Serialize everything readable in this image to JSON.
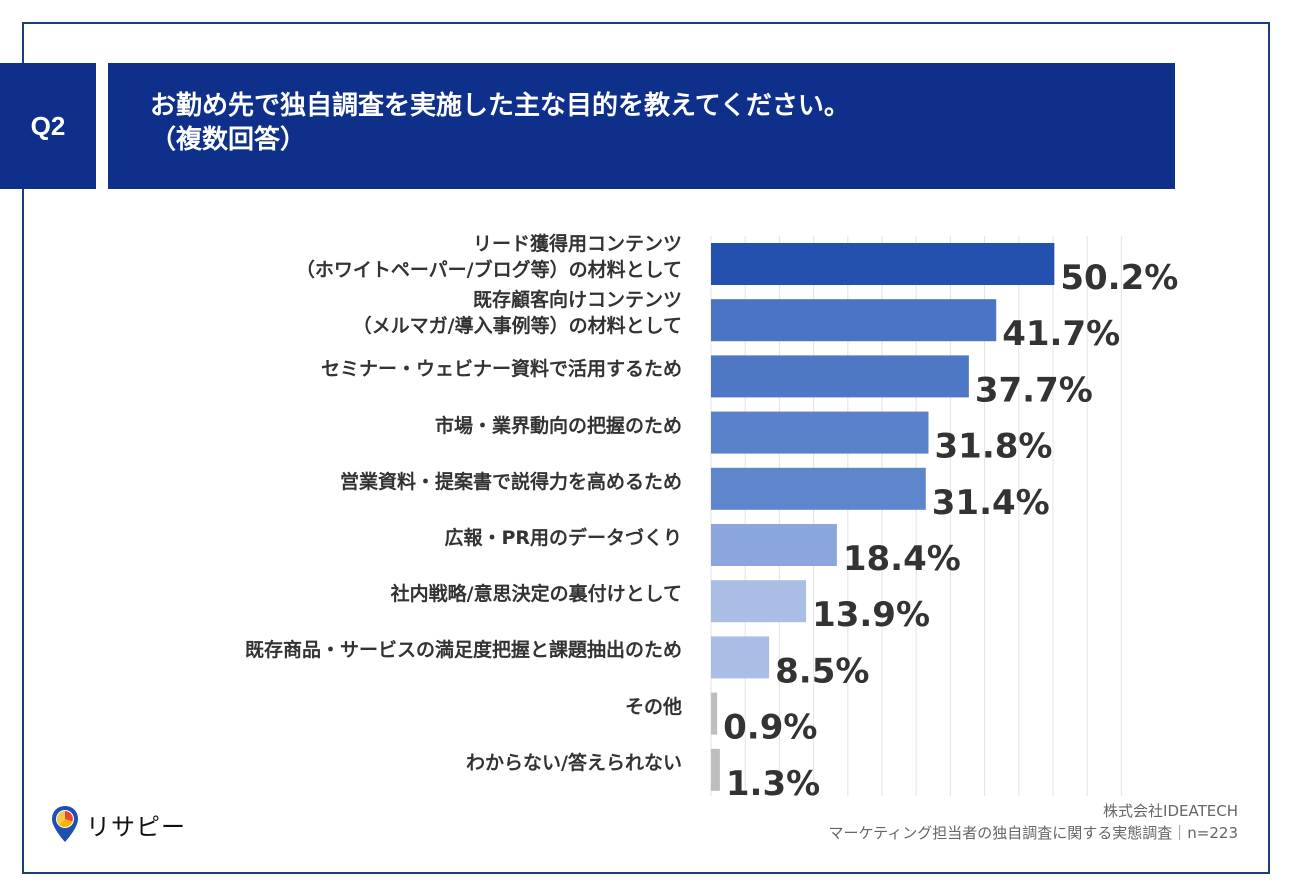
{
  "question": {
    "badge": "Q2",
    "title_line1": "お勤め先で独自調査を実施した主な目的を教えてください。",
    "title_line2": "（複数回答）"
  },
  "chart_data": {
    "type": "bar",
    "orientation": "horizontal",
    "categories": [
      [
        "リード獲得用コンテンツ",
        "（ホワイトペーパー/ブログ等）の材料として"
      ],
      [
        "既存顧客向けコンテンツ",
        "（メルマガ/導入事例等）の材料として"
      ],
      [
        "セミナー・ウェビナー資料で活用するため"
      ],
      [
        "市場・業界動向の把握のため"
      ],
      [
        "営業資料・提案書で説得力を高めるため"
      ],
      [
        "広報・PR用のデータづくり"
      ],
      [
        "社内戦略/意思決定の裏付けとして"
      ],
      [
        "既存商品・サービスの満足度把握と課題抽出のため"
      ],
      [
        "その他"
      ],
      [
        "わからない/答えられない"
      ]
    ],
    "values": [
      50.2,
      41.7,
      37.7,
      31.8,
      31.4,
      18.4,
      13.9,
      8.5,
      0.9,
      1.3
    ],
    "value_labels": [
      "50.2%",
      "41.7%",
      "37.7%",
      "31.8%",
      "31.4%",
      "18.4%",
      "13.9%",
      "8.5%",
      "0.9%",
      "1.3%"
    ],
    "bar_colors": [
      "#2351ad",
      "#4a74c4",
      "#4e78c6",
      "#5a82cb",
      "#5f86cd",
      "#8aa6dc",
      "#a9bde5",
      "#a9bde5",
      "#bdbdbd",
      "#bdbdbd"
    ],
    "xlim": [
      0,
      60
    ],
    "grid": true
  },
  "source": {
    "company": "株式会社IDEATECH",
    "survey": "マーケティング担当者の独自調査に関する実態調査｜n=223"
  },
  "logo": {
    "text": "リサピー",
    "icon": "map-pin-pie-icon"
  }
}
